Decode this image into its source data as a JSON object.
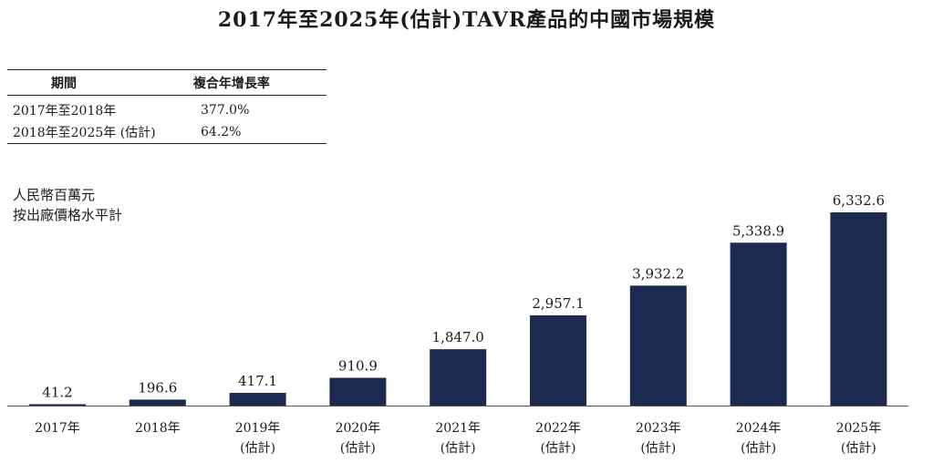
{
  "title": "2017年至2025年(估計)TAVR產品的中國市場規模",
  "cagr_table": {
    "headers": [
      "期間",
      "複合年增長率"
    ],
    "rows": [
      {
        "period": "2017年至2018年",
        "rate": "377.0%"
      },
      {
        "period": "2018年至2025年 (估計)",
        "rate": "64.2%"
      }
    ]
  },
  "unit_label": [
    "人民幣百萬元",
    "按出廠價格水平計"
  ],
  "colors": {
    "bar": "#1b2a4e",
    "axis": "#555555"
  },
  "chart_data": {
    "type": "bar",
    "categories": [
      "2017年",
      "2018年",
      "2019年",
      "2020年",
      "2021年",
      "2022年",
      "2023年",
      "2024年",
      "2025年"
    ],
    "category_notes": [
      "",
      "",
      "(估計)",
      "(估計)",
      "(估計)",
      "(估計)",
      "(估計)",
      "(估計)",
      "(估計)"
    ],
    "values": [
      41.2,
      196.6,
      417.1,
      910.9,
      1847.0,
      2957.1,
      3932.2,
      5338.9,
      6332.6
    ],
    "value_labels": [
      "41.2",
      "196.6",
      "417.1",
      "910.9",
      "1,847.0",
      "2,957.1",
      "3,932.2",
      "5,338.9",
      "6,332.6"
    ],
    "ylim": [
      0,
      6332.6
    ],
    "grid": false,
    "legend": "none"
  }
}
